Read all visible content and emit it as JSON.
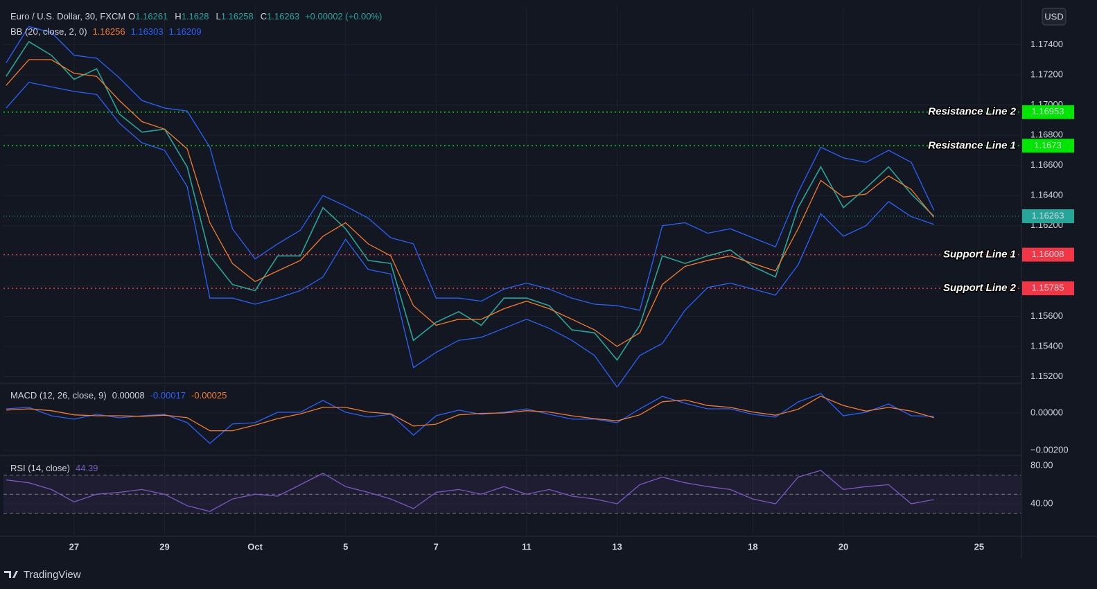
{
  "chart_data": [
    {
      "type": "line",
      "title": "Euro / U.S. Dollar, 30, FXCM",
      "ohlc": [
        {
          "label": "O",
          "value": 1.16261
        },
        {
          "label": "H",
          "value": 1.1628
        },
        {
          "label": "L",
          "value": 1.16258
        },
        {
          "label": "C",
          "value": 1.16263
        }
      ],
      "change": "+0.00002 (+0.00%)",
      "legend": {
        "label": "BB (20, close, 2, 0)",
        "values": [
          1.16256,
          1.16303,
          1.16209
        ],
        "colors": [
          "#f57c2b",
          "#2962ff",
          "#2962ff"
        ]
      },
      "x": [
        -1.5,
        -1,
        -0.5,
        0,
        0.5,
        1,
        1.5,
        2,
        2.5,
        3,
        3.5,
        4,
        4.5,
        5,
        5.5,
        6,
        6.5,
        7,
        7.5,
        8,
        8.5,
        9,
        9.5,
        10,
        10.5,
        11,
        11.5,
        12,
        12.5,
        13,
        13.5,
        14,
        14.5,
        15,
        15.5,
        16,
        16.5,
        17,
        17.5,
        18,
        18.5,
        19
      ],
      "series": [
        {
          "color": "#26a69a",
          "values": [
            1.1719,
            1.1742,
            1.1733,
            1.1717,
            1.1724,
            1.1694,
            1.1682,
            1.1684,
            1.1659,
            1.16,
            1.1581,
            1.1577,
            1.16,
            1.16,
            1.1632,
            1.1618,
            1.1597,
            1.1595,
            1.1544,
            1.1556,
            1.1563,
            1.1554,
            1.1572,
            1.1572,
            1.1567,
            1.1551,
            1.1549,
            1.1531,
            1.1554,
            1.16,
            1.1595,
            1.16,
            1.1604,
            1.1593,
            1.1586,
            1.1632,
            1.1659,
            1.1632,
            1.1645,
            1.1659,
            1.1641,
            1.16263
          ]
        },
        {
          "color": "#f57c2b",
          "values": [
            1.1713,
            1.173,
            1.173,
            1.1721,
            1.1719,
            1.1703,
            1.1689,
            1.1684,
            1.1671,
            1.1622,
            1.1595,
            1.1583,
            1.159,
            1.1597,
            1.1613,
            1.1622,
            1.1608,
            1.16,
            1.1567,
            1.1554,
            1.1558,
            1.1558,
            1.1565,
            1.157,
            1.1565,
            1.1558,
            1.1551,
            1.154,
            1.1549,
            1.1581,
            1.1593,
            1.1597,
            1.16,
            1.1595,
            1.159,
            1.1618,
            1.165,
            1.1639,
            1.1641,
            1.1653,
            1.1644,
            1.16256
          ]
        },
        {
          "color": "#2962ff",
          "values": [
            1.1728,
            1.1752,
            1.1748,
            1.1733,
            1.1731,
            1.1718,
            1.1703,
            1.1698,
            1.1696,
            1.1672,
            1.1618,
            1.1598,
            1.1608,
            1.1617,
            1.164,
            1.1633,
            1.1625,
            1.1612,
            1.1608,
            1.1572,
            1.1572,
            1.157,
            1.1578,
            1.1582,
            1.1578,
            1.1572,
            1.1568,
            1.1567,
            1.1564,
            1.162,
            1.1622,
            1.1615,
            1.1618,
            1.1612,
            1.1606,
            1.1642,
            1.1672,
            1.1665,
            1.1662,
            1.167,
            1.1662,
            1.16303
          ]
        },
        {
          "color": "#2962ff",
          "values": [
            1.1698,
            1.1715,
            1.1712,
            1.1709,
            1.1707,
            1.1688,
            1.1675,
            1.167,
            1.1646,
            1.1572,
            1.1572,
            1.1568,
            1.1572,
            1.1577,
            1.1586,
            1.1611,
            1.1591,
            1.1588,
            1.1526,
            1.1536,
            1.1544,
            1.1546,
            1.1552,
            1.1558,
            1.1552,
            1.1544,
            1.1534,
            1.1513,
            1.1534,
            1.1542,
            1.1564,
            1.1579,
            1.1582,
            1.1578,
            1.1574,
            1.1594,
            1.1628,
            1.1613,
            1.162,
            1.1636,
            1.1626,
            1.16209
          ]
        }
      ],
      "levels": [
        {
          "label": "Resistance Line 2",
          "value": 1.16953,
          "color": "#00e600"
        },
        {
          "label": "Resistance Line 1",
          "value": 1.1673,
          "color": "#00e600"
        },
        {
          "label": "Support Line 1",
          "value": 1.16008,
          "color": "#f23645"
        },
        {
          "label": "Support Line 2",
          "value": 1.15785,
          "color": "#f23645"
        }
      ],
      "last_price": 1.16263,
      "last_price_color": "#26a69a",
      "currency": "USD",
      "xlim": [
        -1.56,
        20.92
      ],
      "ylim": [
        1.1517,
        1.1765
      ],
      "yticks": [
        {
          "value": 1.174,
          "label": "1.17400"
        },
        {
          "value": 1.172,
          "label": "1.17200"
        },
        {
          "value": 1.17,
          "label": "1.17000"
        },
        {
          "value": 1.168,
          "label": "1.16800"
        },
        {
          "value": 1.166,
          "label": "1.16600"
        },
        {
          "value": 1.164,
          "label": "1.16400"
        },
        {
          "value": 1.162,
          "label": "1.16200"
        },
        {
          "value": 1.16,
          "label": "1.16000"
        },
        {
          "value": 1.158,
          "label": "1.15800"
        },
        {
          "value": 1.156,
          "label": "1.15600"
        },
        {
          "value": 1.154,
          "label": "1.15400"
        },
        {
          "value": 1.152,
          "label": "1.15200"
        }
      ],
      "grid": true
    },
    {
      "type": "line",
      "legend": {
        "label": "MACD (12, 26, close, 9)",
        "values": [
          8e-05,
          -0.00017,
          -0.00025
        ],
        "colors": [
          "#d1d4dc",
          "#2962ff",
          "#f57c2b"
        ]
      },
      "x": [
        -1.5,
        -1,
        -0.5,
        0,
        0.5,
        1,
        1.5,
        2,
        2.5,
        3,
        3.5,
        4,
        4.5,
        5,
        5.5,
        6,
        6.5,
        7,
        7.5,
        8,
        8.5,
        9,
        9.5,
        10,
        10.5,
        11,
        11.5,
        12,
        12.5,
        13,
        13.5,
        14,
        14.5,
        15,
        15.5,
        16,
        16.5,
        17,
        17.5,
        18,
        18.5,
        19
      ],
      "series": [
        {
          "color": "#2962ff",
          "values": [
            0.00022,
            0.0003,
            -0.00015,
            -0.00033,
            -7e-05,
            -0.00026,
            -0.00015,
            -7e-05,
            -0.00052,
            -0.00163,
            -0.00059,
            -0.00052,
            4e-05,
            4e-05,
            0.00067,
            4e-05,
            -0.00022,
            -7e-05,
            -0.00119,
            -0.00015,
            0.00015,
            -7e-05,
            4e-05,
            0.00022,
            -7e-05,
            -0.00033,
            -0.00033,
            -0.00052,
            0.00022,
            0.00089,
            0.00052,
            0.00022,
            0.00022,
            -7e-05,
            -0.00022,
            0.00059,
            0.00104,
            -0.00015,
            4e-05,
            0.00048,
            -0.00015,
            -0.00017
          ]
        },
        {
          "color": "#f57c2b",
          "values": [
            0.00015,
            0.00022,
            0.00012,
            -0.0001,
            -0.00015,
            -0.00015,
            -0.00018,
            -0.00012,
            -0.00025,
            -0.00095,
            -0.00095,
            -0.00065,
            -0.0003,
            -5e-05,
            0.0003,
            0.0003,
            5e-05,
            -5e-05,
            -0.0007,
            -0.0006,
            -0.0001,
            -2e-05,
            0,
            0.00012,
            5e-05,
            -0.00015,
            -0.0003,
            -0.00042,
            -0.0001,
            0.0006,
            0.0007,
            0.0004,
            0.0003,
            5e-05,
            -0.00012,
            0.0002,
            0.0009,
            0.0004,
            0.0001,
            0.0003,
            0.0001,
            -0.00025
          ]
        }
      ],
      "xlim": [
        -1.56,
        20.92
      ],
      "ylim": [
        -0.00219,
        0.00152
      ],
      "yticks": [
        {
          "value": 0,
          "label": "0.00000"
        },
        {
          "value": -0.002,
          "label": "−0.00200"
        }
      ],
      "grid": true
    },
    {
      "type": "line",
      "legend": {
        "label": "RSI (14, close)",
        "values": [
          44.39
        ],
        "colors": [
          "#7e57c2"
        ]
      },
      "x": [
        -1.5,
        -1,
        -0.5,
        0,
        0.5,
        1,
        1.5,
        2,
        2.5,
        3,
        3.5,
        4,
        4.5,
        5,
        5.5,
        6,
        6.5,
        7,
        7.5,
        8,
        8.5,
        9,
        9.5,
        10,
        10.5,
        11,
        11.5,
        12,
        12.5,
        13,
        13.5,
        14,
        14.5,
        15,
        15.5,
        16,
        16.5,
        17,
        17.5,
        18,
        18.5,
        19
      ],
      "series": [
        {
          "color": "#7e57c2",
          "values": [
            65,
            62,
            55,
            42,
            50,
            52,
            55,
            50,
            38,
            32,
            45,
            50,
            48,
            60,
            72,
            58,
            52,
            45,
            35,
            52,
            55,
            50,
            58,
            50,
            55,
            48,
            45,
            40,
            60,
            68,
            62,
            58,
            55,
            45,
            40,
            68,
            75,
            55,
            58,
            60,
            40,
            44.39
          ]
        }
      ],
      "band": [
        70,
        50,
        30
      ],
      "xlim": [
        -1.56,
        20.92
      ],
      "ylim": [
        7.3,
        88.7
      ],
      "yticks": [
        {
          "value": 80,
          "label": "80.00"
        },
        {
          "value": 40,
          "label": "40.00"
        }
      ],
      "xticks": [
        {
          "value": 0,
          "label": "27"
        },
        {
          "value": 2,
          "label": "29"
        },
        {
          "value": 4,
          "label": "Oct"
        },
        {
          "value": 6,
          "label": "5"
        },
        {
          "value": 8,
          "label": "7"
        },
        {
          "value": 10,
          "label": "11"
        },
        {
          "value": 12,
          "label": "13"
        },
        {
          "value": 15,
          "label": "18"
        },
        {
          "value": 17,
          "label": "20"
        },
        {
          "value": 20,
          "label": "25"
        }
      ],
      "grid": true
    }
  ],
  "footer": {
    "brand": "TradingView"
  }
}
